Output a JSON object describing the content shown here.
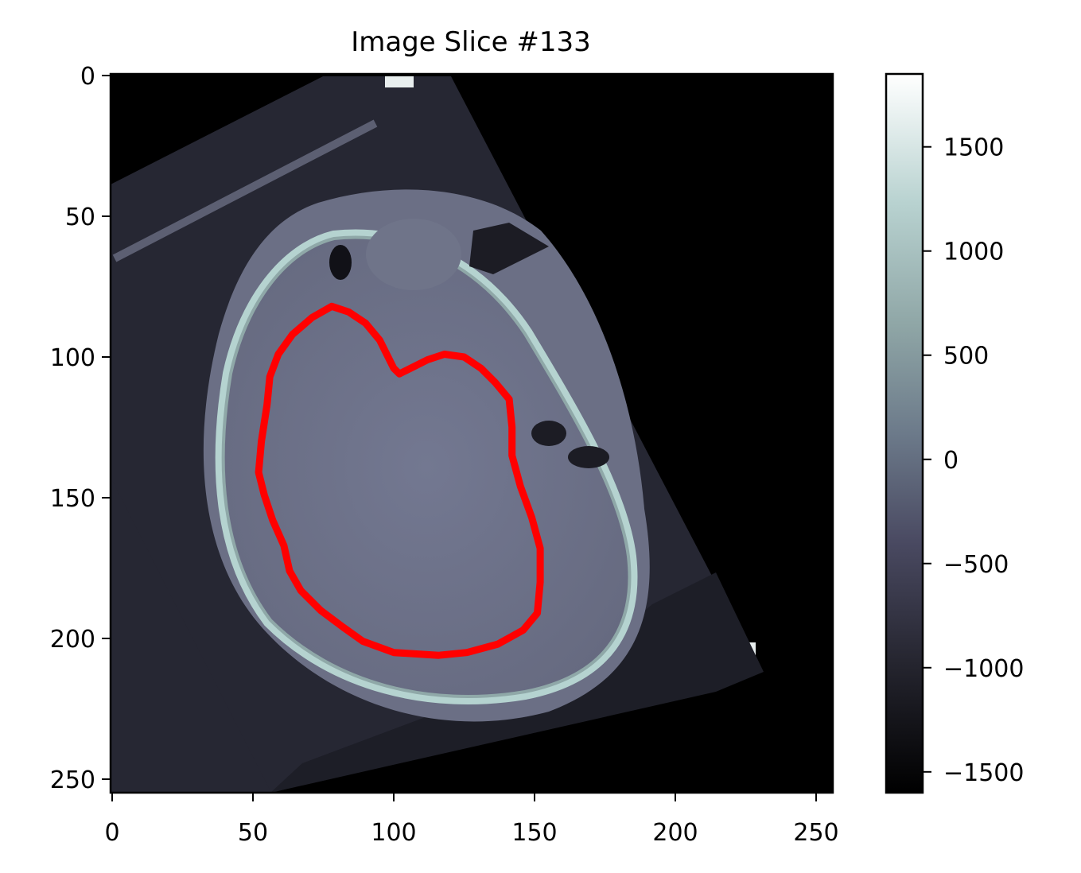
{
  "title": "Image Slice #133",
  "image": {
    "kind": "grayscale CT slice with bone colormap",
    "colormap": "bone",
    "background_color": "#000000",
    "scan_field_color": "#262733",
    "soft_tissue_color": "#6b6f85",
    "skull_bone_color": "#b5d3d0",
    "x_ticks": [
      "0",
      "50",
      "100",
      "150",
      "200",
      "250"
    ],
    "y_ticks": [
      "0",
      "50",
      "100",
      "150",
      "200",
      "250"
    ],
    "x_range": [
      0,
      256
    ],
    "y_range": [
      0,
      256
    ],
    "y_axis": "inverted (0 at top)"
  },
  "contour": {
    "color": "#ff0000",
    "points": [
      [
        78,
        82
      ],
      [
        84,
        84
      ],
      [
        90,
        88
      ],
      [
        95,
        94
      ],
      [
        98,
        100
      ],
      [
        100,
        104
      ],
      [
        102,
        106
      ],
      [
        106,
        104
      ],
      [
        112,
        101
      ],
      [
        118,
        99
      ],
      [
        125,
        100
      ],
      [
        131,
        104
      ],
      [
        136,
        109
      ],
      [
        141,
        115
      ],
      [
        142,
        125
      ],
      [
        142,
        135
      ],
      [
        145,
        146
      ],
      [
        149,
        157
      ],
      [
        152,
        168
      ],
      [
        152,
        180
      ],
      [
        151,
        191
      ],
      [
        146,
        197
      ],
      [
        137,
        202
      ],
      [
        126,
        205
      ],
      [
        116,
        206
      ],
      [
        100,
        205
      ],
      [
        89,
        201
      ],
      [
        82,
        196
      ],
      [
        74,
        190
      ],
      [
        67,
        183
      ],
      [
        63,
        176
      ],
      [
        61,
        167
      ],
      [
        57,
        158
      ],
      [
        54,
        149
      ],
      [
        52,
        141
      ],
      [
        53,
        130
      ],
      [
        55,
        117
      ],
      [
        56,
        107
      ],
      [
        59,
        99
      ],
      [
        64,
        92
      ],
      [
        71,
        86
      ],
      [
        78,
        82
      ]
    ]
  },
  "colorbar": {
    "ticks": [
      "1500",
      "1000",
      "500",
      "0",
      "−500",
      "−1000",
      "−1500"
    ],
    "tick_values": [
      1500,
      1000,
      500,
      0,
      -500,
      -1000,
      -1500
    ],
    "range": [
      -1600,
      1850
    ],
    "colors": [
      "#000000",
      "#25252f",
      "#4a4a62",
      "#6c7a8a",
      "#8fa6a6",
      "#b8d2d0",
      "#ffffff"
    ]
  }
}
